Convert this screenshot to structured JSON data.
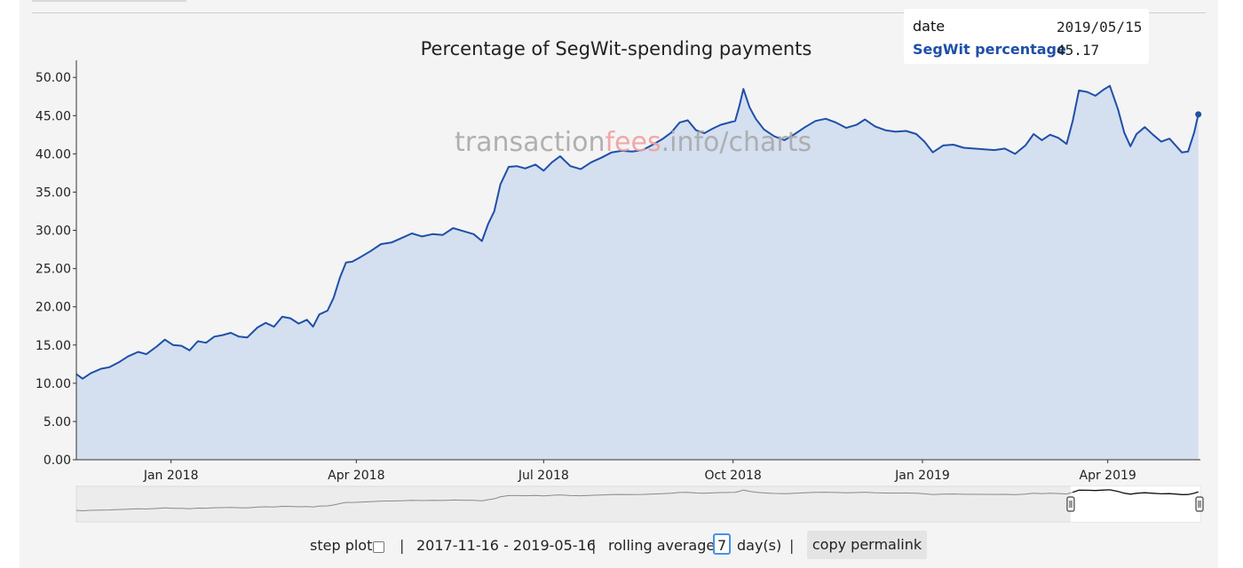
{
  "chart_data": {
    "type": "area",
    "title": "Percentage of SegWit-spending payments",
    "watermark": {
      "part1": "transaction",
      "part2": "fees",
      "part3": ".info/charts"
    },
    "xlabel": "",
    "ylabel": "",
    "x_start": "2017-11-16",
    "x_end": "2019-05-16",
    "ylim": [
      0,
      52
    ],
    "yticks": [
      "0.00",
      "5.00",
      "10.00",
      "15.00",
      "20.00",
      "25.00",
      "30.00",
      "35.00",
      "40.00",
      "45.00",
      "50.00"
    ],
    "xticks": [
      {
        "label": "Jan 2018",
        "date": "2018-01-01"
      },
      {
        "label": "Apr 2018",
        "date": "2018-04-01"
      },
      {
        "label": "Jul 2018",
        "date": "2018-07-01"
      },
      {
        "label": "Oct 2018",
        "date": "2018-10-01"
      },
      {
        "label": "Jan 2019",
        "date": "2019-01-01"
      },
      {
        "label": "Apr 2019",
        "date": "2019-04-01"
      }
    ],
    "series": [
      {
        "name": "SegWit percentage",
        "color": "#1f4fa8",
        "fill": "#d4dff0",
        "points": [
          [
            "2017-11-16",
            11.2
          ],
          [
            "2017-11-19",
            10.6
          ],
          [
            "2017-11-23",
            11.3
          ],
          [
            "2017-11-28",
            11.9
          ],
          [
            "2017-12-02",
            12.1
          ],
          [
            "2017-12-07",
            12.8
          ],
          [
            "2017-12-11",
            13.5
          ],
          [
            "2017-12-16",
            14.1
          ],
          [
            "2017-12-20",
            13.8
          ],
          [
            "2017-12-25",
            14.8
          ],
          [
            "2017-12-29",
            15.7
          ],
          [
            "2018-01-02",
            15.0
          ],
          [
            "2018-01-06",
            14.9
          ],
          [
            "2018-01-10",
            14.3
          ],
          [
            "2018-01-14",
            15.5
          ],
          [
            "2018-01-18",
            15.3
          ],
          [
            "2018-01-22",
            16.1
          ],
          [
            "2018-01-26",
            16.3
          ],
          [
            "2018-01-30",
            16.6
          ],
          [
            "2018-02-03",
            16.1
          ],
          [
            "2018-02-07",
            16.0
          ],
          [
            "2018-02-12",
            17.3
          ],
          [
            "2018-02-16",
            17.9
          ],
          [
            "2018-02-20",
            17.4
          ],
          [
            "2018-02-24",
            18.7
          ],
          [
            "2018-02-28",
            18.5
          ],
          [
            "2018-03-04",
            17.8
          ],
          [
            "2018-03-08",
            18.3
          ],
          [
            "2018-03-11",
            17.4
          ],
          [
            "2018-03-14",
            19.0
          ],
          [
            "2018-03-18",
            19.5
          ],
          [
            "2018-03-21",
            21.2
          ],
          [
            "2018-03-24",
            23.8
          ],
          [
            "2018-03-27",
            25.8
          ],
          [
            "2018-03-30",
            25.9
          ],
          [
            "2018-04-03",
            26.5
          ],
          [
            "2018-04-08",
            27.3
          ],
          [
            "2018-04-13",
            28.2
          ],
          [
            "2018-04-18",
            28.4
          ],
          [
            "2018-04-23",
            29.0
          ],
          [
            "2018-04-28",
            29.6
          ],
          [
            "2018-05-03",
            29.2
          ],
          [
            "2018-05-08",
            29.5
          ],
          [
            "2018-05-13",
            29.4
          ],
          [
            "2018-05-18",
            30.3
          ],
          [
            "2018-05-23",
            29.9
          ],
          [
            "2018-05-28",
            29.5
          ],
          [
            "2018-06-01",
            28.6
          ],
          [
            "2018-06-04",
            30.8
          ],
          [
            "2018-06-07",
            32.5
          ],
          [
            "2018-06-10",
            36.0
          ],
          [
            "2018-06-14",
            38.3
          ],
          [
            "2018-06-18",
            38.4
          ],
          [
            "2018-06-22",
            38.1
          ],
          [
            "2018-06-27",
            38.6
          ],
          [
            "2018-07-01",
            37.8
          ],
          [
            "2018-07-05",
            38.9
          ],
          [
            "2018-07-09",
            39.7
          ],
          [
            "2018-07-14",
            38.4
          ],
          [
            "2018-07-19",
            38.0
          ],
          [
            "2018-07-24",
            38.9
          ],
          [
            "2018-07-29",
            39.5
          ],
          [
            "2018-08-03",
            40.2
          ],
          [
            "2018-08-08",
            40.4
          ],
          [
            "2018-08-13",
            40.3
          ],
          [
            "2018-08-18",
            40.5
          ],
          [
            "2018-08-23",
            41.2
          ],
          [
            "2018-08-28",
            42.0
          ],
          [
            "2018-09-01",
            42.8
          ],
          [
            "2018-09-05",
            44.1
          ],
          [
            "2018-09-09",
            44.4
          ],
          [
            "2018-09-13",
            43.1
          ],
          [
            "2018-09-17",
            42.7
          ],
          [
            "2018-09-21",
            43.3
          ],
          [
            "2018-09-25",
            43.8
          ],
          [
            "2018-09-29",
            44.1
          ],
          [
            "2018-10-02",
            44.3
          ],
          [
            "2018-10-04",
            46.2
          ],
          [
            "2018-10-06",
            48.5
          ],
          [
            "2018-10-09",
            46.1
          ],
          [
            "2018-10-12",
            44.6
          ],
          [
            "2018-10-16",
            43.2
          ],
          [
            "2018-10-21",
            42.3
          ],
          [
            "2018-10-26",
            41.8
          ],
          [
            "2018-10-31",
            42.6
          ],
          [
            "2018-11-05",
            43.5
          ],
          [
            "2018-11-10",
            44.3
          ],
          [
            "2018-11-15",
            44.6
          ],
          [
            "2018-11-20",
            44.1
          ],
          [
            "2018-11-25",
            43.4
          ],
          [
            "2018-11-30",
            43.8
          ],
          [
            "2018-12-04",
            44.5
          ],
          [
            "2018-12-09",
            43.6
          ],
          [
            "2018-12-14",
            43.1
          ],
          [
            "2018-12-19",
            42.9
          ],
          [
            "2018-12-24",
            43.0
          ],
          [
            "2018-12-29",
            42.6
          ],
          [
            "2019-01-02",
            41.6
          ],
          [
            "2019-01-06",
            40.2
          ],
          [
            "2019-01-11",
            41.1
          ],
          [
            "2019-01-16",
            41.2
          ],
          [
            "2019-01-21",
            40.8
          ],
          [
            "2019-01-26",
            40.7
          ],
          [
            "2019-01-31",
            40.6
          ],
          [
            "2019-02-05",
            40.5
          ],
          [
            "2019-02-10",
            40.7
          ],
          [
            "2019-02-15",
            40.0
          ],
          [
            "2019-02-20",
            41.1
          ],
          [
            "2019-02-24",
            42.6
          ],
          [
            "2019-02-28",
            41.8
          ],
          [
            "2019-03-04",
            42.5
          ],
          [
            "2019-03-08",
            42.1
          ],
          [
            "2019-03-12",
            41.3
          ],
          [
            "2019-03-15",
            44.3
          ],
          [
            "2019-03-18",
            48.3
          ],
          [
            "2019-03-22",
            48.1
          ],
          [
            "2019-03-26",
            47.6
          ],
          [
            "2019-03-30",
            48.4
          ],
          [
            "2019-04-02",
            48.9
          ],
          [
            "2019-04-06",
            45.8
          ],
          [
            "2019-04-09",
            42.8
          ],
          [
            "2019-04-12",
            41.0
          ],
          [
            "2019-04-15",
            42.6
          ],
          [
            "2019-04-19",
            43.5
          ],
          [
            "2019-04-23",
            42.5
          ],
          [
            "2019-04-27",
            41.6
          ],
          [
            "2019-05-01",
            42.0
          ],
          [
            "2019-05-04",
            41.1
          ],
          [
            "2019-05-07",
            40.2
          ],
          [
            "2019-05-10",
            40.3
          ],
          [
            "2019-05-13",
            42.8
          ],
          [
            "2019-05-15",
            45.17
          ]
        ]
      }
    ],
    "grid": false,
    "legend": "none"
  },
  "tooltip": {
    "date_label": "date",
    "date_value": "2019/05/15",
    "series_label": "SegWit percentage",
    "series_value": "45.17"
  },
  "controls": {
    "step_plot_label": "step plot",
    "separator": "|",
    "date_range": "2017-11-16 - 2019-05-16",
    "rolling_label": "rolling average",
    "rolling_value": "7",
    "rolling_unit": "day(s)",
    "permalink_label": "copy permalink"
  },
  "range_selector": {
    "selected_start": "2019-03-14",
    "selected_end": "2019-05-16"
  }
}
